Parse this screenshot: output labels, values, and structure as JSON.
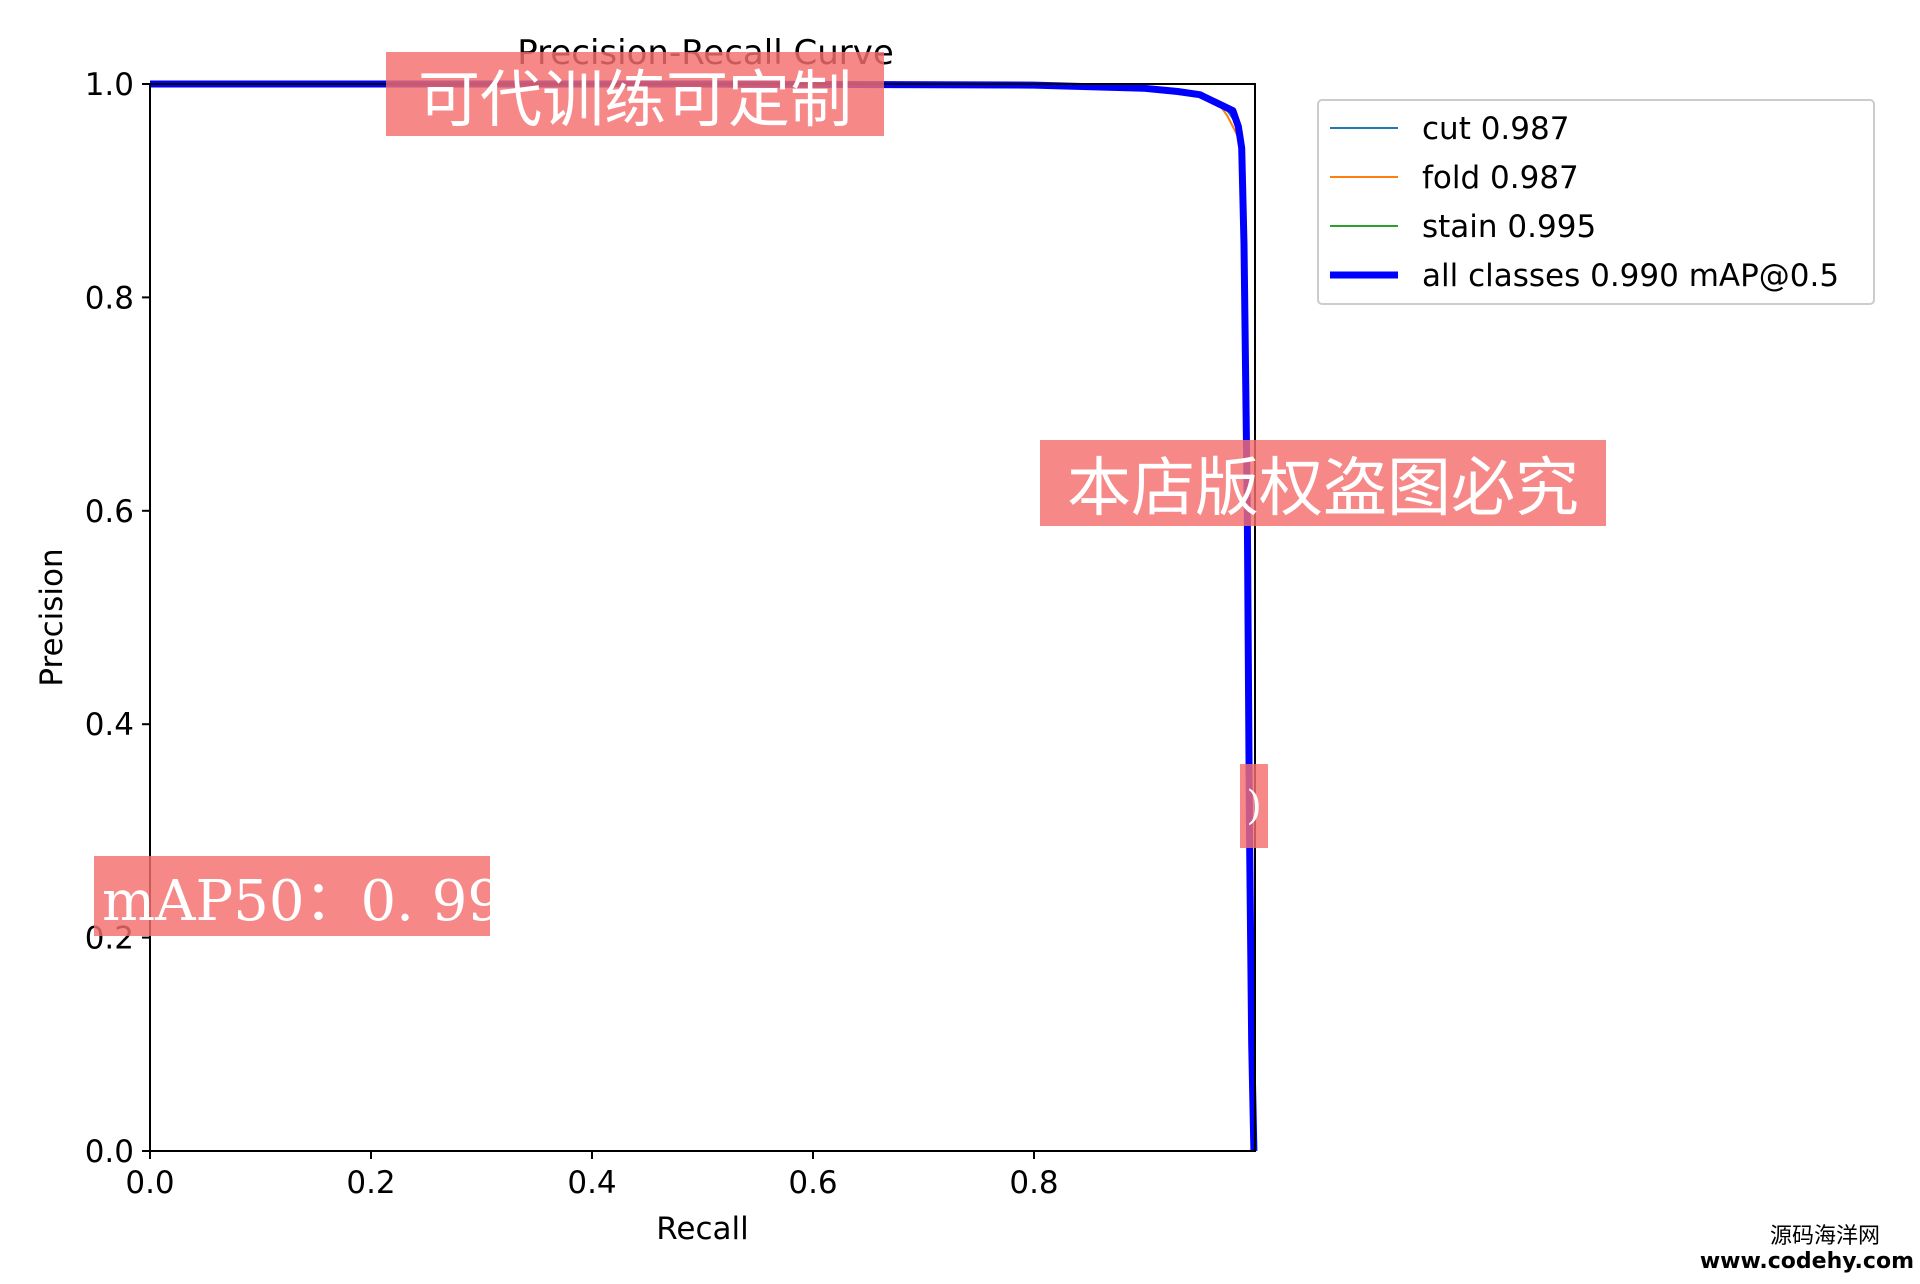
{
  "chart_data": {
    "type": "line",
    "title": "Precision-Recall Curve",
    "xlabel": "Recall",
    "ylabel": "Precision",
    "xlim": [
      0.0,
      1.0
    ],
    "ylim": [
      0.0,
      1.0
    ],
    "x_ticks": [
      "0.0",
      "0.2",
      "0.4",
      "0.6",
      "0.8"
    ],
    "y_ticks": [
      "0.0",
      "0.2",
      "0.4",
      "0.6",
      "0.8",
      "1.0"
    ],
    "grid": false,
    "legend_position": "upper-right-outside",
    "series": [
      {
        "name": "cut 0.987",
        "color": "#1f77b4",
        "line": "thin",
        "x": [
          0.0,
          0.5,
          0.8,
          0.9,
          0.93,
          0.95,
          0.965,
          0.975,
          0.985,
          0.988,
          0.99,
          0.995,
          0.997,
          1.0
        ],
        "y": [
          1.0,
          1.0,
          1.0,
          0.998,
          0.995,
          0.99,
          0.985,
          0.975,
          0.96,
          0.93,
          0.7,
          0.3,
          0.05,
          0.0
        ]
      },
      {
        "name": "fold 0.987",
        "color": "#ff7f0e",
        "line": "thin",
        "x": [
          0.0,
          0.5,
          0.8,
          0.9,
          0.93,
          0.95,
          0.965,
          0.975,
          0.985,
          0.99,
          0.993,
          0.995,
          0.998,
          1.0
        ],
        "y": [
          1.0,
          1.0,
          1.0,
          0.998,
          0.995,
          0.99,
          0.985,
          0.97,
          0.95,
          0.9,
          0.6,
          0.35,
          0.1,
          0.0
        ]
      },
      {
        "name": "stain 0.995",
        "color": "#2ca02c",
        "line": "thin",
        "x": [
          0.0,
          0.5,
          0.9,
          0.95,
          0.99,
          0.997,
          1.0,
          1.0
        ],
        "y": [
          1.0,
          1.0,
          1.0,
          1.0,
          1.0,
          1.0,
          1.0,
          0.0
        ]
      },
      {
        "name": "all classes 0.990 mAP@0.5",
        "color": "#0000ff",
        "line": "thick",
        "x": [
          0.0,
          0.5,
          0.8,
          0.9,
          0.93,
          0.95,
          0.96,
          0.97,
          0.98,
          0.985,
          0.988,
          0.99,
          0.993,
          0.995,
          0.997,
          0.999
        ],
        "y": [
          1.0,
          1.0,
          0.999,
          0.996,
          0.993,
          0.99,
          0.985,
          0.98,
          0.975,
          0.96,
          0.94,
          0.85,
          0.6,
          0.3,
          0.1,
          0.0
        ]
      }
    ]
  },
  "watermarks": {
    "top": "可代训练可定制",
    "middle": "本店版权盗图必究",
    "fragment": ")",
    "metric": "mAP50：0. 99"
  },
  "site_credit": {
    "name_cn": "源码海洋网",
    "url": "www.codehy.com"
  }
}
